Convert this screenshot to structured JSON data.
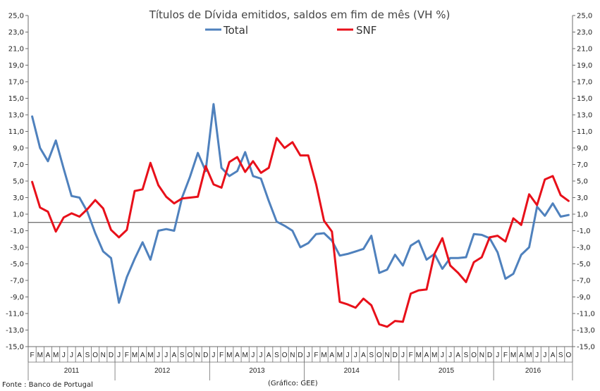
{
  "chart_data": {
    "type": "line",
    "title": "Títulos de Dívida emitidos, saldos em fim de mês  (VH %)",
    "y_ticks": [
      "25,0",
      "23,0",
      "21,0",
      "19,0",
      "17,0",
      "15,0",
      "13,0",
      "11,0",
      "9,0",
      "7,0",
      "5,0",
      "3,0",
      "1,0",
      "-1,0",
      "-3,0",
      "-5,0",
      "-7,0",
      "-9,0",
      "-11,0",
      "-13,0",
      "-15,0"
    ],
    "ylim": [
      -15,
      25
    ],
    "months": [
      "F",
      "M",
      "A",
      "M",
      "J",
      "J",
      "A",
      "S",
      "O",
      "N",
      "D",
      "J",
      "F",
      "M",
      "A",
      "M",
      "J",
      "J",
      "A",
      "S",
      "O",
      "N",
      "D",
      "J",
      "F",
      "M",
      "A",
      "M",
      "J",
      "J",
      "A",
      "S",
      "O",
      "N",
      "D",
      "J",
      "F",
      "M",
      "A",
      "M",
      "J",
      "J",
      "A",
      "S",
      "O",
      "N",
      "D",
      "J",
      "F",
      "M",
      "A",
      "M",
      "J",
      "J",
      "A",
      "S",
      "O",
      "N",
      "D",
      "J",
      "F",
      "M",
      "A",
      "M",
      "J",
      "J",
      "A",
      "S",
      "O"
    ],
    "years": [
      {
        "label": "2011",
        "start": 0,
        "end": 11
      },
      {
        "label": "2012",
        "start": 11,
        "end": 23
      },
      {
        "label": "2013",
        "start": 23,
        "end": 35
      },
      {
        "label": "2014",
        "start": 35,
        "end": 47
      },
      {
        "label": "2015",
        "start": 47,
        "end": 59
      },
      {
        "label": "2016",
        "start": 59,
        "end": 69
      }
    ],
    "reference_line": 0,
    "series": [
      {
        "name": "Total",
        "color": "#4f81bd",
        "values": [
          12.8,
          9.0,
          7.4,
          9.9,
          6.5,
          3.2,
          3.0,
          1.3,
          -1.3,
          -3.5,
          -4.3,
          -9.7,
          -6.6,
          -4.4,
          -2.4,
          -4.5,
          -1.0,
          -0.8,
          -1.0,
          3.0,
          5.5,
          8.4,
          6.2,
          14.3,
          6.6,
          5.6,
          6.2,
          8.5,
          5.6,
          5.3,
          2.6,
          0.1,
          -0.4,
          -1.0,
          -3.0,
          -2.5,
          -1.4,
          -1.3,
          -2.2,
          -4.0,
          -3.8,
          -3.5,
          -3.2,
          -1.6,
          -6.1,
          -5.7,
          -3.9,
          -5.2,
          -2.8,
          -2.2,
          -4.5,
          -3.8,
          -5.6,
          -4.3,
          -4.3,
          -4.2,
          -1.4,
          -1.5,
          -1.9,
          -3.6,
          -6.8,
          -6.2,
          -3.9,
          -3.0,
          1.9,
          0.8,
          2.3,
          0.7,
          0.9
        ]
      },
      {
        "name": "SNF",
        "color": "#e8101a",
        "values": [
          4.9,
          1.8,
          1.3,
          -1.1,
          0.6,
          1.1,
          0.7,
          1.6,
          2.7,
          1.7,
          -0.9,
          -1.8,
          -0.9,
          3.8,
          4.0,
          7.2,
          4.5,
          3.1,
          2.3,
          2.9,
          3.0,
          3.1,
          6.8,
          4.6,
          4.2,
          7.3,
          7.9,
          6.1,
          7.4,
          6.0,
          6.6,
          10.2,
          9.0,
          9.7,
          8.1,
          8.1,
          4.6,
          0.2,
          -1.1,
          -9.6,
          -9.9,
          -10.3,
          -9.2,
          -10.0,
          -12.3,
          -12.6,
          -11.9,
          -12.0,
          -8.6,
          -8.2,
          -8.1,
          -3.8,
          -1.9,
          -5.2,
          -6.1,
          -7.2,
          -4.8,
          -4.2,
          -1.8,
          -1.6,
          -2.3,
          0.5,
          -0.3,
          3.4,
          2.1,
          5.2,
          5.6,
          3.3,
          2.6
        ]
      }
    ],
    "source_note": "Fonte : Banco de Portugal",
    "credit_note": "(Gráfico: GEE)"
  }
}
